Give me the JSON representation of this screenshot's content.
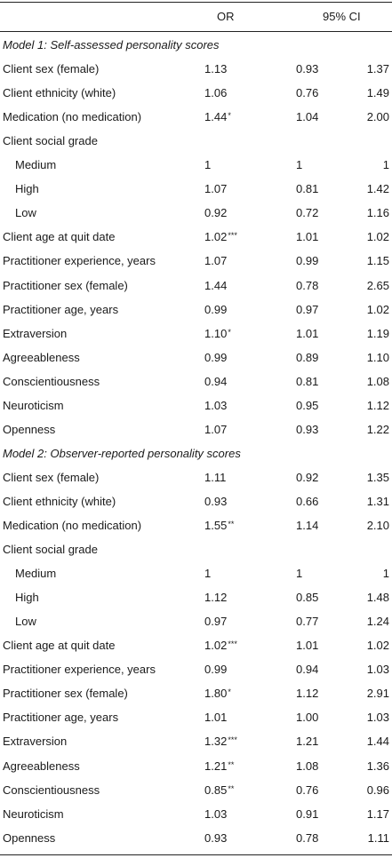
{
  "header": {
    "or": "OR",
    "ci": "95% CI"
  },
  "models": [
    {
      "title": "Model 1: Self-assessed personality scores",
      "rows": [
        {
          "label": "Client sex (female)",
          "or": "1.13",
          "sig": "",
          "lo": "0.93",
          "hi": "1.37"
        },
        {
          "label": "Client ethnicity (white)",
          "or": "1.06",
          "sig": "",
          "lo": "0.76",
          "hi": "1.49"
        },
        {
          "label": "Medication (no medication)",
          "or": "1.44",
          "sig": "*",
          "lo": "1.04",
          "hi": "2.00"
        },
        {
          "label": "Client social grade",
          "or": "",
          "sig": "",
          "lo": "",
          "hi": ""
        },
        {
          "label": "Medium",
          "indent": true,
          "or": "1",
          "sig": "",
          "lo": "1",
          "hi": "1"
        },
        {
          "label": "High",
          "indent": true,
          "or": "1.07",
          "sig": "",
          "lo": "0.81",
          "hi": "1.42"
        },
        {
          "label": "Low",
          "indent": true,
          "or": "0.92",
          "sig": "",
          "lo": "0.72",
          "hi": "1.16"
        },
        {
          "label": "Client age at quit date",
          "or": "1.02",
          "sig": "***",
          "lo": "1.01",
          "hi": "1.02"
        },
        {
          "label": "Practitioner experience, years",
          "or": "1.07",
          "sig": "",
          "lo": "0.99",
          "hi": "1.15"
        },
        {
          "label": "Practitioner sex (female)",
          "or": "1.44",
          "sig": "",
          "lo": "0.78",
          "hi": "2.65"
        },
        {
          "label": "Practitioner age, years",
          "or": "0.99",
          "sig": "",
          "lo": "0.97",
          "hi": "1.02"
        },
        {
          "label": "Extraversion",
          "or": "1.10",
          "sig": "*",
          "lo": "1.01",
          "hi": "1.19"
        },
        {
          "label": "Agreeableness",
          "or": "0.99",
          "sig": "",
          "lo": "0.89",
          "hi": "1.10"
        },
        {
          "label": "Conscientiousness",
          "or": "0.94",
          "sig": "",
          "lo": "0.81",
          "hi": "1.08"
        },
        {
          "label": "Neuroticism",
          "or": "1.03",
          "sig": "",
          "lo": "0.95",
          "hi": "1.12"
        },
        {
          "label": "Openness",
          "or": "1.07",
          "sig": "",
          "lo": "0.93",
          "hi": "1.22"
        }
      ]
    },
    {
      "title": "Model 2: Observer-reported personality scores",
      "rows": [
        {
          "label": "Client sex (female)",
          "or": "1.11",
          "sig": "",
          "lo": "0.92",
          "hi": "1.35"
        },
        {
          "label": "Client ethnicity (white)",
          "or": "0.93",
          "sig": "",
          "lo": "0.66",
          "hi": "1.31"
        },
        {
          "label": "Medication (no medication)",
          "or": "1.55",
          "sig": "**",
          "lo": "1.14",
          "hi": "2.10"
        },
        {
          "label": "Client social grade",
          "or": "",
          "sig": "",
          "lo": "",
          "hi": ""
        },
        {
          "label": "Medium",
          "indent": true,
          "or": "1",
          "sig": "",
          "lo": "1",
          "hi": "1"
        },
        {
          "label": "High",
          "indent": true,
          "or": "1.12",
          "sig": "",
          "lo": "0.85",
          "hi": "1.48"
        },
        {
          "label": "Low",
          "indent": true,
          "or": "0.97",
          "sig": "",
          "lo": "0.77",
          "hi": "1.24"
        },
        {
          "label": "Client age at quit date",
          "or": "1.02",
          "sig": "***",
          "lo": "1.01",
          "hi": "1.02"
        },
        {
          "label": "Practitioner experience, years",
          "or": "0.99",
          "sig": "",
          "lo": "0.94",
          "hi": "1.03"
        },
        {
          "label": "Practitioner sex (female)",
          "or": "1.80",
          "sig": "*",
          "lo": "1.12",
          "hi": "2.91"
        },
        {
          "label": "Practitioner age, years",
          "or": "1.01",
          "sig": "",
          "lo": "1.00",
          "hi": "1.03"
        },
        {
          "label": "Extraversion",
          "or": "1.32",
          "sig": "***",
          "lo": "1.21",
          "hi": "1.44"
        },
        {
          "label": "Agreeableness",
          "or": "1.21",
          "sig": "**",
          "lo": "1.08",
          "hi": "1.36"
        },
        {
          "label": "Conscientiousness",
          "or": "0.85",
          "sig": "**",
          "lo": "0.76",
          "hi": "0.96"
        },
        {
          "label": "Neuroticism",
          "or": "1.03",
          "sig": "",
          "lo": "0.91",
          "hi": "1.17"
        },
        {
          "label": "Openness",
          "or": "0.93",
          "sig": "",
          "lo": "0.78",
          "hi": "1.11"
        }
      ]
    }
  ]
}
